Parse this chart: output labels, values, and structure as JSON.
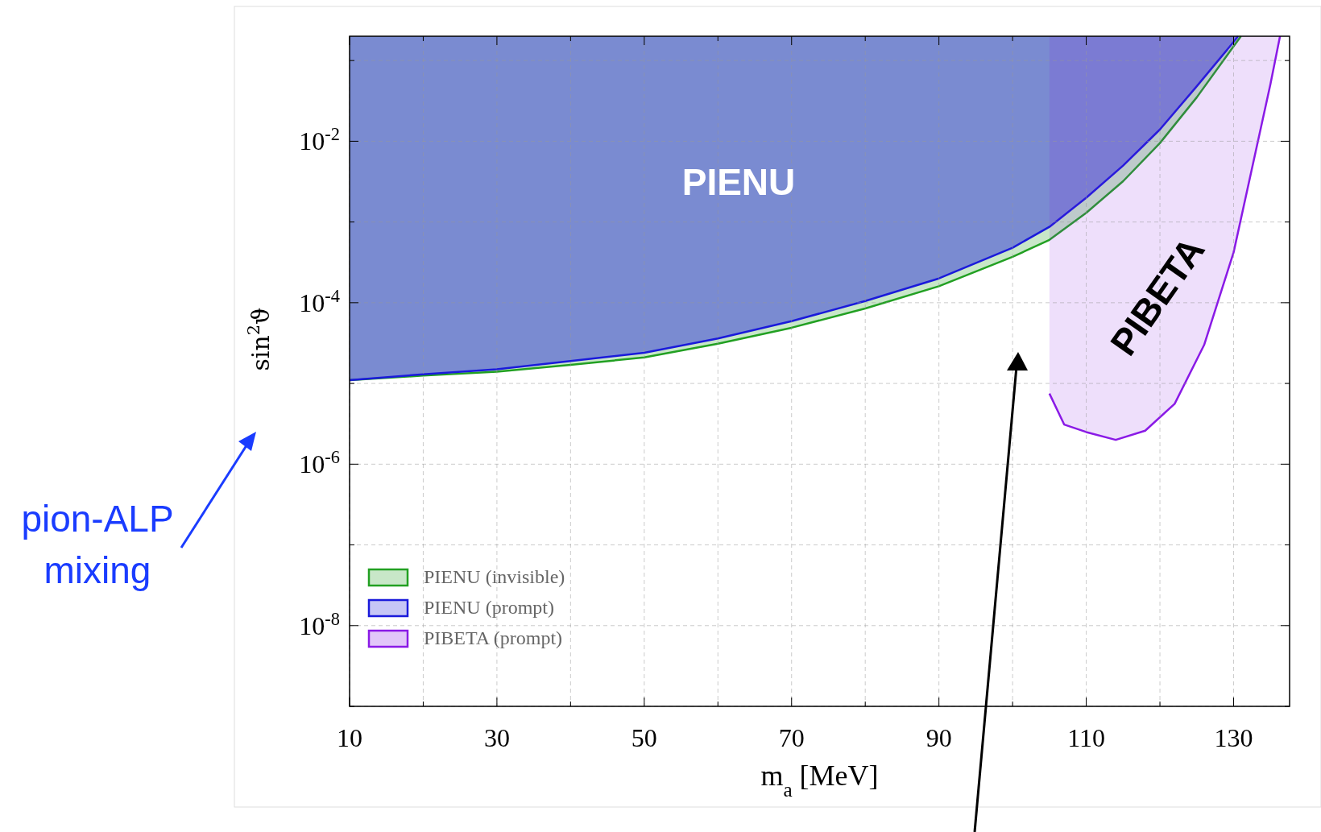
{
  "chart_data": {
    "type": "line",
    "xlabel": "m$_{a}$ [MeV]",
    "ylabel": "sin$^{2}$ϑ",
    "log": "y",
    "grid": true,
    "legend": "bottom left",
    "xlim": [
      10,
      137.6
    ],
    "ylim": [
      1e-09,
      0.2
    ],
    "xticks": [
      10,
      {
        "value": 20,
        "label": null
      },
      30,
      {
        "value": 40,
        "label": null
      },
      50,
      {
        "value": 60,
        "label": null
      },
      70,
      {
        "value": 80,
        "label": null
      },
      90,
      {
        "value": 100,
        "label": null
      },
      110,
      {
        "value": 120,
        "label": null
      },
      130
    ],
    "yticks": [
      {
        "value": 1e-09,
        "label": null
      },
      {
        "value": 1e-08,
        "label": "10$^{-8}$"
      },
      {
        "value": 1e-07,
        "label": null
      },
      {
        "value": 1e-06,
        "label": "10$^{-6}$"
      },
      {
        "value": 1e-05,
        "label": null
      },
      {
        "value": 0.0001,
        "label": "10$^{-4}$"
      },
      {
        "value": 0.001,
        "label": null
      },
      {
        "value": 0.01,
        "label": "10$^{-2}$"
      },
      {
        "value": 0.1,
        "label": null
      }
    ],
    "series": [
      {
        "name": "PIENU (invisible)",
        "color": "#22a022",
        "x": [
          10,
          20,
          30,
          40,
          50,
          60,
          70,
          80,
          90,
          100,
          105,
          110,
          115,
          120,
          125,
          130,
          131
        ],
        "values": [
          1.1e-05,
          1.25e-05,
          1.4e-05,
          1.7e-05,
          2.1e-05,
          3.1e-05,
          4.9e-05,
          8.5e-05,
          0.00016,
          0.00037,
          0.0006,
          0.0013,
          0.0032,
          0.0095,
          0.035,
          0.15,
          0.2
        ],
        "lower": [
          1.1e-05,
          1.25e-05,
          1.4e-05,
          1.7e-05,
          2.1e-05,
          3.1e-05,
          4.9e-05,
          8.5e-05,
          0.00016,
          0.00037,
          0.0006,
          0.0013,
          0.0032,
          0.0095,
          0.035,
          0.15,
          0.2
        ],
        "upper": [
          0.2,
          0.2,
          0.2,
          0.2,
          0.2,
          0.2,
          0.2,
          0.2,
          0.2,
          0.2,
          0.2,
          0.2,
          0.2,
          0.2,
          0.2,
          0.2,
          0.2
        ]
      },
      {
        "name": "PIENU (prompt)",
        "color": "#1a1adb",
        "x": [
          10,
          20,
          30,
          40,
          50,
          60,
          70,
          80,
          90,
          100,
          105,
          110,
          115,
          120,
          125,
          130,
          130.6
        ],
        "values": [
          1.1e-05,
          1.3e-05,
          1.5e-05,
          1.9e-05,
          2.4e-05,
          3.6e-05,
          5.9e-05,
          0.000105,
          0.0002,
          0.00048,
          0.00087,
          0.002,
          0.005,
          0.014,
          0.048,
          0.17,
          0.2
        ],
        "lower": [
          1.1e-05,
          1.3e-05,
          1.5e-05,
          1.9e-05,
          2.4e-05,
          3.6e-05,
          5.9e-05,
          0.000105,
          0.0002,
          0.00048,
          0.00087,
          0.002,
          0.005,
          0.014,
          0.048,
          0.17,
          0.2
        ],
        "upper": [
          0.2,
          0.2,
          0.2,
          0.2,
          0.2,
          0.2,
          0.2,
          0.2,
          0.2,
          0.2,
          0.2,
          0.2,
          0.2,
          0.2,
          0.2,
          0.2,
          0.2
        ]
      },
      {
        "name": "PIBETA (prompt)",
        "color": "#8a1ae6",
        "x": [
          105,
          107,
          110,
          114,
          118,
          122,
          126,
          130,
          133,
          135,
          136.3
        ],
        "values": [
          7.5e-06,
          3.1e-06,
          2.5e-06,
          2e-06,
          2.6e-06,
          5.6e-06,
          3e-05,
          0.00042,
          0.0075,
          0.051,
          0.2
        ],
        "lower": [
          7.5e-06,
          3.1e-06,
          2.5e-06,
          2e-06,
          2.6e-06,
          5.6e-06,
          3e-05,
          0.00042,
          0.0075,
          0.051,
          0.2
        ],
        "upper": [
          0.2,
          0.2,
          0.2,
          0.2,
          0.2,
          0.2,
          0.2,
          0.2,
          0.2,
          0.2,
          0.2
        ]
      }
    ],
    "annotations": [
      "PIENU",
      "PIBETA",
      "pion-ALP mixing"
    ]
  }
}
